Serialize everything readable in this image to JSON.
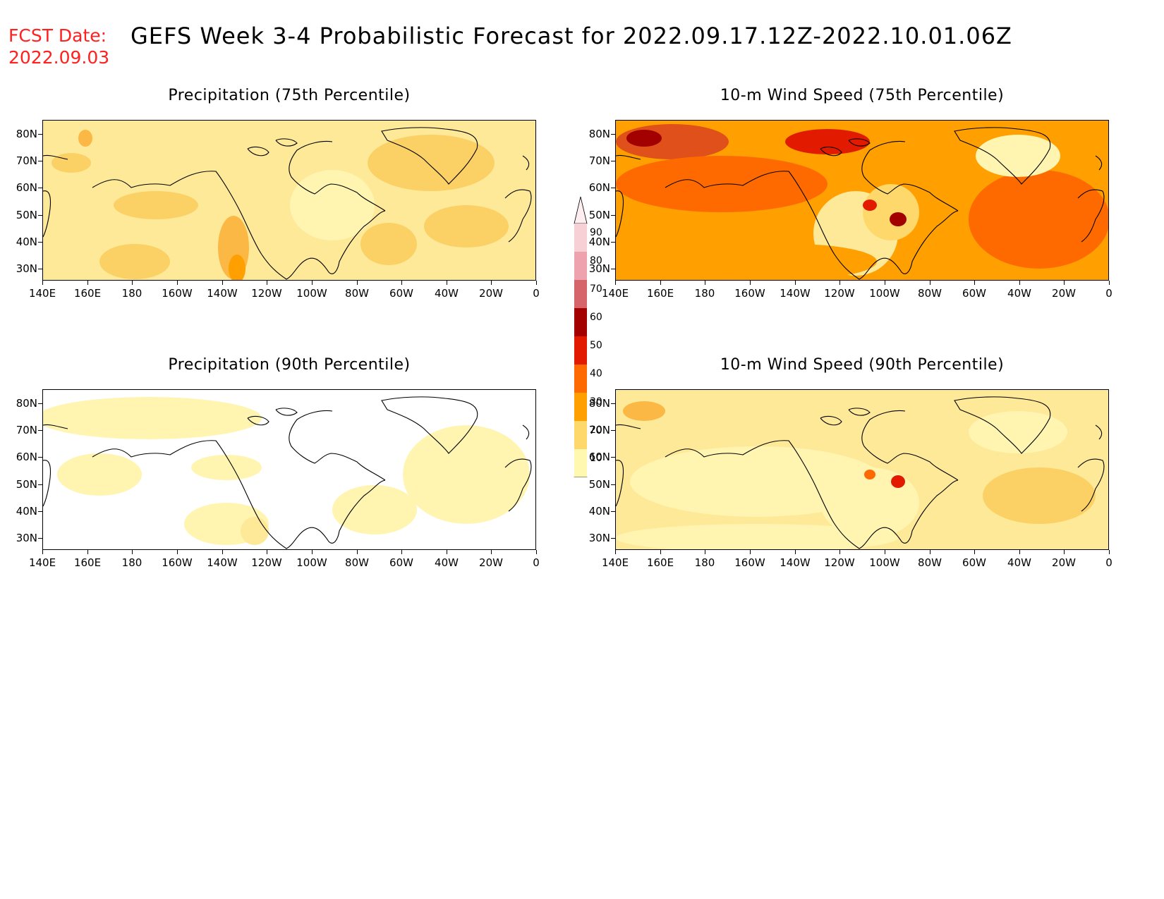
{
  "header": {
    "fcst_label": "FCST Date:",
    "fcst_date": "2022.09.03",
    "title": "GEFS Week 3-4 Probabilistic Forecast for 2022.09.17.12Z-2022.10.01.06Z"
  },
  "axes": {
    "lat_labels": [
      "80N",
      "70N",
      "60N",
      "50N",
      "40N",
      "30N"
    ],
    "lon_labels": [
      "140E",
      "160E",
      "180",
      "160W",
      "140W",
      "120W",
      "100W",
      "80W",
      "60W",
      "40W",
      "20W",
      "0"
    ]
  },
  "panels": [
    {
      "title": "Precipitation (75th Percentile)",
      "palette": "precip75"
    },
    {
      "title": "10-m Wind Speed (75th Percentile)",
      "palette": "wind75"
    },
    {
      "title": "Precipitation (90th Percentile)",
      "palette": "precip90"
    },
    {
      "title": "10-m Wind Speed (90th Percentile)",
      "palette": "wind90"
    }
  ],
  "colorbar": {
    "levels": [
      "90",
      "80",
      "70",
      "60",
      "50",
      "40",
      "30",
      "20",
      "10"
    ],
    "colors": [
      "#f7d0d6",
      "#eda2ad",
      "#d5646b",
      "#a30000",
      "#e21b00",
      "#ff6a00",
      "#ff9f00",
      "#ffd86b",
      "#fff8b0"
    ]
  }
}
